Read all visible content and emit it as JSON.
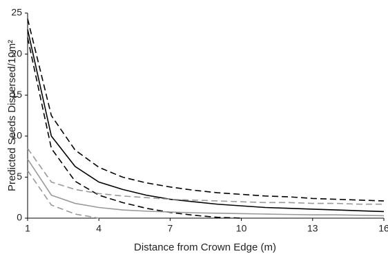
{
  "chart_data": {
    "type": "line",
    "xlabel": "Distance from Crown Edge (m)",
    "ylabel": "Predicted Seeds Dispersed/10m²",
    "x": [
      1,
      2,
      3,
      4,
      5,
      6,
      7,
      8,
      9,
      10,
      11,
      12,
      13,
      14,
      15,
      16
    ],
    "series": [
      {
        "color": "#000000",
        "dashed": true,
        "values": [
          24.3,
          12.5,
          8.3,
          6.2,
          5.0,
          4.3,
          3.8,
          3.4,
          3.1,
          2.9,
          2.7,
          2.6,
          2.4,
          2.3,
          2.2,
          2.1
        ]
      },
      {
        "color": "#000000",
        "dashed": false,
        "values": [
          23,
          10,
          6.3,
          4.4,
          3.5,
          2.8,
          2.3,
          2.0,
          1.7,
          1.5,
          1.3,
          1.2,
          1.1,
          1.0,
          0.9,
          0.8
        ]
      },
      {
        "color": "#000000",
        "dashed": true,
        "values": [
          22,
          8.5,
          4.5,
          2.8,
          1.9,
          1.2,
          0.7,
          0.35,
          0.1,
          0,
          null,
          null,
          null,
          null,
          null,
          null
        ]
      },
      {
        "color": "#999999",
        "dashed": true,
        "values": [
          8.5,
          4.4,
          3.5,
          3.0,
          2.7,
          2.5,
          2.3,
          2.2,
          2.1,
          2.0,
          1.9,
          1.9,
          1.8,
          1.8,
          1.7,
          1.7
        ]
      },
      {
        "color": "#999999",
        "dashed": false,
        "values": [
          7.2,
          2.8,
          1.8,
          1.3,
          1.0,
          0.85,
          0.75,
          0.65,
          0.6,
          0.55,
          0.5,
          0.45,
          0.4,
          0.4,
          0.35,
          0.3
        ]
      },
      {
        "color": "#999999",
        "dashed": true,
        "values": [
          5.8,
          1.6,
          0.5,
          0,
          null,
          null,
          null,
          null,
          null,
          null,
          null,
          null,
          null,
          null,
          null,
          null
        ]
      }
    ],
    "xlim": [
      1,
      16
    ],
    "xticks": [
      1,
      4,
      7,
      10,
      13,
      16
    ],
    "ylim": [
      0,
      25
    ],
    "yticks": [
      0,
      5,
      10,
      15,
      20,
      25
    ]
  }
}
